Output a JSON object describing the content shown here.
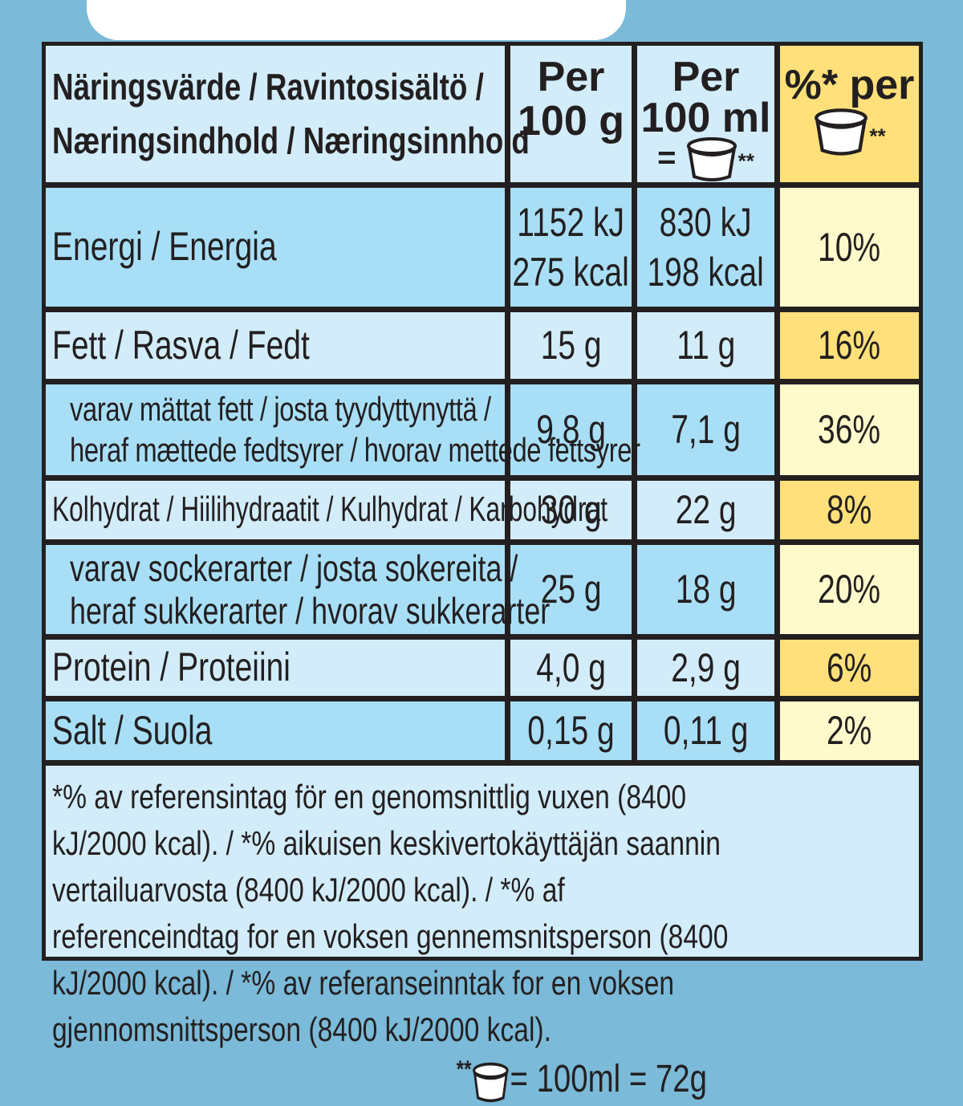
{
  "header": {
    "label_line1": "Näringsvärde / Ravintosisältö /",
    "label_line2": "Næringsindhold / Næringsinnhold",
    "col1_line1": "Per",
    "col1_line2": "100 g",
    "col2_line1": "Per",
    "col2_line2": "100 ml",
    "col2_eq": "=",
    "col2_stars": "**",
    "col3_line1": "%* per",
    "col3_stars": "**"
  },
  "rows": [
    {
      "label": [
        "Energi / Energia"
      ],
      "per100g": [
        "1152 kJ",
        "275 kcal"
      ],
      "per100ml": [
        "830 kJ",
        "198 kcal"
      ],
      "pct": "10%"
    },
    {
      "label": [
        "Fett / Rasva / Fedt"
      ],
      "per100g": [
        "15 g"
      ],
      "per100ml": [
        "11 g"
      ],
      "pct": "16%"
    },
    {
      "label": [
        "varav mättat fett / josta tyydyttynyttä /",
        "heraf mættede fedtsyrer / hvorav mettede fettsyrer"
      ],
      "per100g": [
        "9,8 g"
      ],
      "per100ml": [
        "7,1 g"
      ],
      "pct": "36%"
    },
    {
      "label": [
        "Kolhydrat / Hiilihydraatit / Kulhydrat / Karbohydrat"
      ],
      "per100g": [
        "30 g"
      ],
      "per100ml": [
        "22 g"
      ],
      "pct": "8%"
    },
    {
      "label": [
        "varav sockerarter / josta sokereita /",
        "heraf sukkerarter / hvorav sukkerarter"
      ],
      "per100g": [
        "25 g"
      ],
      "per100ml": [
        "18 g"
      ],
      "pct": "20%"
    },
    {
      "label": [
        "Protein / Proteiini"
      ],
      "per100g": [
        "4,0 g"
      ],
      "per100ml": [
        "2,9 g"
      ],
      "pct": "6%"
    },
    {
      "label": [
        "Salt / Suola"
      ],
      "per100g": [
        "0,15 g"
      ],
      "per100ml": [
        "0,11 g"
      ],
      "pct": "2%"
    }
  ],
  "footnote": {
    "text": "*% av referensintag för en genomsnittlig vuxen (8400 kJ/2000 kcal). / *% aikuisen keskivertokäyttäjän saannin vertailuarvosta (8400 kJ/2000 kcal). / *% af referenceindtag for en voksen gennemsnitsperson (8400 kJ/2000 kcal). / *% av referanseinntak for en voksen gjennomsnittsperson (8400 kJ/2000 kcal).",
    "stars": "**",
    "serving": "= 100ml = 72g"
  },
  "colors": {
    "background": "#7bbad8",
    "row_light": "#d2ecf9",
    "row_dark": "#a8dff6",
    "yellow": "#ffe07a",
    "yellow_light": "#fffacc"
  }
}
